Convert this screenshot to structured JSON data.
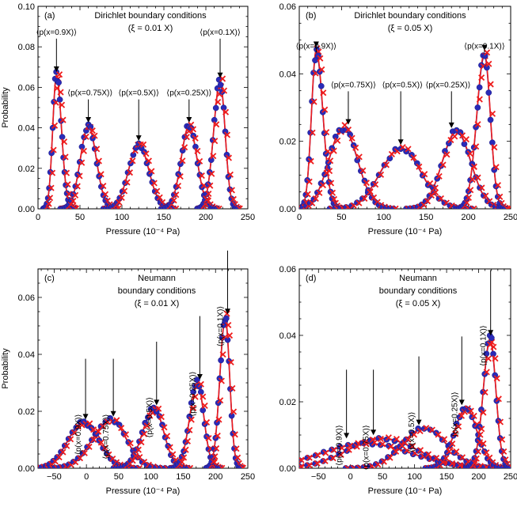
{
  "colors": {
    "red": "#ee1c1c",
    "blue": "#2a2ab8",
    "axis": "#000000"
  },
  "marker_icons": {
    "simulation": "blue-circle-icon",
    "theory": "red-cross-icon"
  },
  "chart_data": [
    {
      "type": "line",
      "panel": "(a)",
      "title": [
        "Dirichlet boundary conditions",
        "(ξ = 0.01 X)"
      ],
      "xlabel": "Pressure (10⁻⁴ Pa)",
      "ylabel": "Probability",
      "xlim": [
        0,
        250
      ],
      "ylim": [
        0,
        0.1
      ],
      "xticks": [
        0,
        50,
        100,
        150,
        200,
        250
      ],
      "yticks": [
        0.0,
        0.02,
        0.04,
        0.06,
        0.08,
        0.1
      ],
      "ytick_labels": [
        "0.00",
        "0.02",
        "0.04",
        "0.06",
        "0.08",
        "0.10"
      ],
      "series": [
        {
          "label": "⟨p(x=0.9X)⟩",
          "center": 22,
          "width": 6,
          "peak": 0.066,
          "left_ratio": 0.75
        },
        {
          "label": "⟨p(x=0.75X)⟩",
          "center": 60,
          "width": 9.5,
          "peak": 0.041,
          "left_ratio": 1
        },
        {
          "label": "⟨p(x=0.5X)⟩",
          "center": 120,
          "width": 12,
          "peak": 0.032,
          "left_ratio": 1
        },
        {
          "label": "⟨p(x=0.25X)⟩",
          "center": 180,
          "width": 9.5,
          "peak": 0.041,
          "left_ratio": 1
        },
        {
          "label": "⟨p(x=0.1X)⟩",
          "center": 217,
          "width": 6,
          "peak": 0.063,
          "left_ratio": 1.3
        }
      ],
      "annotations": [
        {
          "text": "⟨p(x=0.9X)⟩",
          "target": [
            22,
            0.066
          ],
          "text_at": [
            22,
            0.086
          ],
          "vertical": false
        },
        {
          "text": "⟨p(x=0.75X)⟩",
          "target": [
            60,
            0.041
          ],
          "text_at": [
            62,
            0.056
          ],
          "vertical": false
        },
        {
          "text": "⟨p(x=0.5X)⟩",
          "target": [
            120,
            0.032
          ],
          "text_at": [
            120,
            0.056
          ],
          "vertical": false
        },
        {
          "text": "⟨p(x=0.25X)⟩",
          "target": [
            180,
            0.041
          ],
          "text_at": [
            180,
            0.056
          ],
          "vertical": false
        },
        {
          "text": "⟨p(x=0.1X)⟩",
          "target": [
            217,
            0.063
          ],
          "text_at": [
            217,
            0.086
          ],
          "vertical": false
        }
      ]
    },
    {
      "type": "line",
      "panel": "(b)",
      "title": [
        "Dirichlet boundary conditions",
        "(ξ = 0.05 X)"
      ],
      "xlabel": "Pressure (10⁻⁴ Pa)",
      "ylabel": "",
      "xlim": [
        0,
        250
      ],
      "ylim": [
        0,
        0.06
      ],
      "xticks": [
        0,
        50,
        100,
        150,
        200,
        250
      ],
      "yticks": [
        0.0,
        0.02,
        0.04,
        0.06
      ],
      "ytick_labels": [
        "0.00",
        "0.02",
        "0.04",
        "0.06"
      ],
      "series": [
        {
          "label": "⟨p(x=0.9X)⟩",
          "center": 20,
          "width": 8,
          "peak": 0.047,
          "left_ratio": 0.7
        },
        {
          "label": "⟨p(x=0.75X)⟩",
          "center": 52,
          "width": 17,
          "peak": 0.024,
          "left_ratio": 1
        },
        {
          "label": "⟨p(x=0.5X)⟩",
          "center": 120,
          "width": 24,
          "peak": 0.018,
          "left_ratio": 1
        },
        {
          "label": "⟨p(x=0.25X)⟩",
          "center": 186,
          "width": 17,
          "peak": 0.023,
          "left_ratio": 1
        },
        {
          "label": "⟨p(x=0.1X)⟩",
          "center": 219,
          "width": 7,
          "peak": 0.046,
          "left_ratio": 1.3
        }
      ],
      "annotations": [
        {
          "text": "⟨p(x=0.9X)⟩",
          "target": [
            20,
            0.047
          ],
          "text_at": [
            20,
            0.0475
          ],
          "vertical": false
        },
        {
          "text": "⟨p(x=0.75X)⟩",
          "target": [
            58,
            0.024
          ],
          "text_at": [
            64,
            0.036
          ],
          "vertical": false
        },
        {
          "text": "⟨p(x=0.5X)⟩",
          "target": [
            120,
            0.018
          ],
          "text_at": [
            122,
            0.036
          ],
          "vertical": false
        },
        {
          "text": "⟨p(x=0.25X)⟩",
          "target": [
            180,
            0.023
          ],
          "text_at": [
            176,
            0.036
          ],
          "vertical": false
        },
        {
          "text": "⟨p(x=0.1X)⟩",
          "target": [
            219,
            0.046
          ],
          "text_at": [
            219,
            0.0475
          ],
          "vertical": false
        }
      ]
    },
    {
      "type": "line",
      "panel": "(c)",
      "title": [
        "Neumann",
        "boundary conditions",
        "(ξ = 0.01 X)"
      ],
      "xlabel": "Pressure (10⁻⁴ Pa)",
      "ylabel": "Probability",
      "xlim": [
        -75,
        250
      ],
      "ylim": [
        0,
        0.07
      ],
      "xticks": [
        -50,
        0,
        50,
        100,
        150,
        200,
        250
      ],
      "yticks": [
        0.0,
        0.02,
        0.04,
        0.06
      ],
      "ytick_labels": [
        "0.00",
        "0.02",
        "0.04",
        "0.06"
      ],
      "series": [
        {
          "label": "⟨p(x=0.9X)⟩",
          "center": -5,
          "width": 24,
          "peak": 0.016,
          "left_ratio": 1
        },
        {
          "label": "⟨p(x=0.75X)⟩",
          "center": 38,
          "width": 24,
          "peak": 0.017,
          "left_ratio": 1.2
        },
        {
          "label": "⟨p(x=0.5X)⟩",
          "center": 105,
          "width": 15,
          "peak": 0.021,
          "left_ratio": 1.2
        },
        {
          "label": "⟨p(x=0.25X)⟩",
          "center": 172,
          "width": 10,
          "peak": 0.03,
          "left_ratio": 1.2
        },
        {
          "label": "⟨p(x=0.1X)⟩",
          "center": 215,
          "width": 7,
          "peak": 0.053,
          "left_ratio": 1.2
        }
      ],
      "annotations": [
        {
          "text": "⟨p(x=0.9X)⟩",
          "target": [
            -5,
            0.016
          ],
          "text_at": [
            -5,
            0.019
          ],
          "vertical": true
        },
        {
          "text": "⟨p(x=0.75X)⟩",
          "target": [
            38,
            0.017
          ],
          "text_at": [
            38,
            0.019
          ],
          "vertical": true
        },
        {
          "text": "⟨p(x=0.5X)⟩",
          "target": [
            105,
            0.021
          ],
          "text_at": [
            105,
            0.025
          ],
          "vertical": true
        },
        {
          "text": "⟨p(x=0.25X)⟩",
          "target": [
            172,
            0.03
          ],
          "text_at": [
            172,
            0.034
          ],
          "vertical": true
        },
        {
          "text": "⟨p(x=0.1X)⟩",
          "target": [
            215,
            0.053
          ],
          "text_at": [
            215,
            0.057
          ],
          "vertical": true
        }
      ]
    },
    {
      "type": "line",
      "panel": "(d)",
      "title": [
        "Neumann",
        "boundary conditions",
        "(ξ = 0.05 X)"
      ],
      "xlabel": "Pressure (10⁻⁴ Pa)",
      "ylabel": "",
      "xlim": [
        -80,
        250
      ],
      "ylim": [
        0,
        0.06
      ],
      "xticks": [
        -50,
        0,
        50,
        100,
        150,
        200,
        250
      ],
      "yticks": [
        0.0,
        0.02,
        0.04,
        0.06
      ],
      "ytick_labels": [
        "0.00",
        "0.02",
        "0.04",
        "0.06"
      ],
      "series": [
        {
          "label": "⟨p(x=0.9X)⟩",
          "center": 25,
          "width": 70,
          "peak": 0.0075,
          "left_ratio": 1
        },
        {
          "label": "⟨p(x=0.75X)⟩",
          "center": 50,
          "width": 55,
          "peak": 0.009,
          "left_ratio": 1
        },
        {
          "label": "⟨p(x=0.5X)⟩",
          "center": 115,
          "width": 35,
          "peak": 0.012,
          "left_ratio": 1
        },
        {
          "label": "⟨p(x=0.25X)⟩",
          "center": 180,
          "width": 18,
          "peak": 0.018,
          "left_ratio": 1
        },
        {
          "label": "⟨p(x=0.1X)⟩",
          "center": 218,
          "width": 9,
          "peak": 0.039,
          "left_ratio": 1.2
        }
      ],
      "annotations": [
        {
          "text": "⟨p(x=0.9X)⟩",
          "target": [
            -10,
            0.008
          ],
          "text_at": [
            -10,
            0.013
          ],
          "vertical": true
        },
        {
          "text": "⟨p(x=0.75X)⟩",
          "target": [
            32,
            0.009
          ],
          "text_at": [
            32,
            0.013
          ],
          "vertical": true
        },
        {
          "text": "⟨p(x=0.5X)⟩",
          "target": [
            103,
            0.012
          ],
          "text_at": [
            103,
            0.017
          ],
          "vertical": true
        },
        {
          "text": "⟨p(x=0.25X)⟩",
          "target": [
            170,
            0.018
          ],
          "text_at": [
            170,
            0.023
          ],
          "vertical": true
        },
        {
          "text": "⟨p(x=0.1X)⟩",
          "target": [
            215,
            0.039
          ],
          "text_at": [
            215,
            0.043
          ],
          "vertical": true
        }
      ]
    }
  ]
}
